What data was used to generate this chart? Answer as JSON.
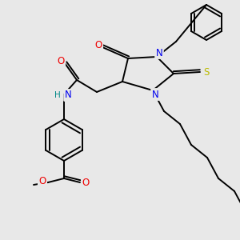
{
  "bg_color": "#e8e8e8",
  "atom_colors": {
    "N": "#0000ee",
    "O": "#ee0000",
    "S": "#bbbb00",
    "C": "#000000",
    "H": "#008888"
  },
  "bond_color": "#000000",
  "bond_lw": 1.4
}
